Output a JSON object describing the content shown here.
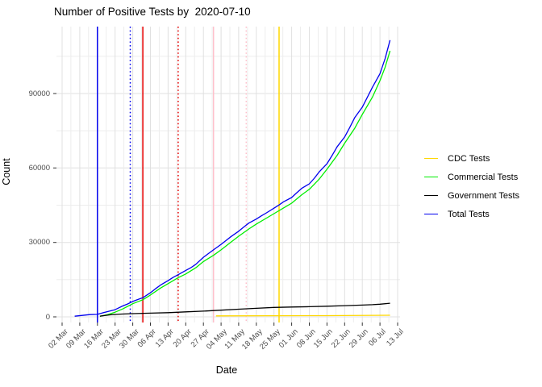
{
  "title": "Number of Positive Tests by  2020-07-10",
  "axes": {
    "x_label": "Date",
    "y_label": "Count"
  },
  "legend": {
    "items": [
      {
        "label": "CDC Tests",
        "color": "#FFD700"
      },
      {
        "label": "Commercial Tests",
        "color": "#00EE00"
      },
      {
        "label": "Government Tests",
        "color": "#000000"
      },
      {
        "label": "Total Tests",
        "color": "#0000EE"
      }
    ]
  },
  "chart_data": {
    "type": "line",
    "title": "Number of Positive Tests by  2020-07-10",
    "xlabel": "Date",
    "ylabel": "Count",
    "x_range": [
      "2020-03-02",
      "2020-07-13"
    ],
    "ylim": [
      0,
      116000
    ],
    "grid": true,
    "legend_position": "right",
    "x_tick_labels": [
      "02 Mar",
      "09 Mar",
      "16 Mar",
      "23 Mar",
      "30 Mar",
      "06 Apr",
      "13 Apr",
      "20 Apr",
      "27 Apr",
      "04 May",
      "11 May",
      "18 May",
      "25 May",
      "01 Jun",
      "08 Jun",
      "15 Jun",
      "22 Jun",
      "29 Jun",
      "06 Jul",
      "13 Jul"
    ],
    "y_ticks": [
      0,
      30000,
      60000,
      90000
    ],
    "y_minor_ticks": [
      15000,
      45000,
      75000,
      105000
    ],
    "x_minor_grid_interval_days": 3.5,
    "series": [
      {
        "name": "Total Tests",
        "color": "#0000EE",
        "points": [
          [
            "2020-03-07",
            250
          ],
          [
            "2020-03-10",
            600
          ],
          [
            "2020-03-13",
            900
          ],
          [
            "2020-03-16",
            1000
          ],
          [
            "2020-03-18",
            1600
          ],
          [
            "2020-03-20",
            2100
          ],
          [
            "2020-03-23",
            2900
          ],
          [
            "2020-03-26",
            4400
          ],
          [
            "2020-03-28",
            5200
          ],
          [
            "2020-03-30",
            6200
          ],
          [
            "2020-04-01",
            7000
          ],
          [
            "2020-04-03",
            7700
          ],
          [
            "2020-04-06",
            9700
          ],
          [
            "2020-04-08",
            11300
          ],
          [
            "2020-04-10",
            12800
          ],
          [
            "2020-04-13",
            14600
          ],
          [
            "2020-04-15",
            15900
          ],
          [
            "2020-04-17",
            17000
          ],
          [
            "2020-04-20",
            18700
          ],
          [
            "2020-04-22",
            19800
          ],
          [
            "2020-04-24",
            21200
          ],
          [
            "2020-04-27",
            24000
          ],
          [
            "2020-04-29",
            25500
          ],
          [
            "2020-05-01",
            27000
          ],
          [
            "2020-05-04",
            29200
          ],
          [
            "2020-05-06",
            30800
          ],
          [
            "2020-05-08",
            32400
          ],
          [
            "2020-05-11",
            34500
          ],
          [
            "2020-05-13",
            36200
          ],
          [
            "2020-05-15",
            37800
          ],
          [
            "2020-05-18",
            39400
          ],
          [
            "2020-05-20",
            40700
          ],
          [
            "2020-05-22",
            41900
          ],
          [
            "2020-05-25",
            43800
          ],
          [
            "2020-05-27",
            45100
          ],
          [
            "2020-05-29",
            46500
          ],
          [
            "2020-06-01",
            48100
          ],
          [
            "2020-06-03",
            50000
          ],
          [
            "2020-06-05",
            51800
          ],
          [
            "2020-06-08",
            53600
          ],
          [
            "2020-06-10",
            55900
          ],
          [
            "2020-06-12",
            58500
          ],
          [
            "2020-06-15",
            61700
          ],
          [
            "2020-06-17",
            65000
          ],
          [
            "2020-06-19",
            68500
          ],
          [
            "2020-06-22",
            72500
          ],
          [
            "2020-06-24",
            76300
          ],
          [
            "2020-06-26",
            80300
          ],
          [
            "2020-06-29",
            84500
          ],
          [
            "2020-07-01",
            88500
          ],
          [
            "2020-07-03",
            92500
          ],
          [
            "2020-07-06",
            98000
          ],
          [
            "2020-07-08",
            104000
          ],
          [
            "2020-07-10",
            111500
          ]
        ]
      },
      {
        "name": "Commercial Tests",
        "color": "#00EE00",
        "points": [
          [
            "2020-03-17",
            200
          ],
          [
            "2020-03-20",
            900
          ],
          [
            "2020-03-23",
            1900
          ],
          [
            "2020-03-26",
            3200
          ],
          [
            "2020-03-30",
            5300
          ],
          [
            "2020-04-03",
            6900
          ],
          [
            "2020-04-06",
            8800
          ],
          [
            "2020-04-10",
            11600
          ],
          [
            "2020-04-13",
            13400
          ],
          [
            "2020-04-17",
            15800
          ],
          [
            "2020-04-20",
            17300
          ],
          [
            "2020-04-24",
            19800
          ],
          [
            "2020-04-27",
            22300
          ],
          [
            "2020-05-01",
            24800
          ],
          [
            "2020-05-04",
            27000
          ],
          [
            "2020-05-08",
            30200
          ],
          [
            "2020-05-11",
            32500
          ],
          [
            "2020-05-15",
            35400
          ],
          [
            "2020-05-18",
            37400
          ],
          [
            "2020-05-22",
            39800
          ],
          [
            "2020-05-25",
            41600
          ],
          [
            "2020-05-29",
            44000
          ],
          [
            "2020-06-01",
            45800
          ],
          [
            "2020-06-05",
            49200
          ],
          [
            "2020-06-08",
            51400
          ],
          [
            "2020-06-12",
            55600
          ],
          [
            "2020-06-15",
            59500
          ],
          [
            "2020-06-19",
            65000
          ],
          [
            "2020-06-22",
            70000
          ],
          [
            "2020-06-26",
            76000
          ],
          [
            "2020-06-29",
            81600
          ],
          [
            "2020-07-03",
            88500
          ],
          [
            "2020-07-06",
            95200
          ],
          [
            "2020-07-08",
            100500
          ],
          [
            "2020-07-10",
            107200
          ]
        ]
      },
      {
        "name": "Government Tests",
        "color": "#000000",
        "points": [
          [
            "2020-03-17",
            300
          ],
          [
            "2020-03-21",
            800
          ],
          [
            "2020-03-25",
            1100
          ],
          [
            "2020-03-30",
            1300
          ],
          [
            "2020-04-06",
            1500
          ],
          [
            "2020-04-13",
            1700
          ],
          [
            "2020-04-20",
            2000
          ],
          [
            "2020-04-27",
            2300
          ],
          [
            "2020-05-04",
            2700
          ],
          [
            "2020-05-11",
            3100
          ],
          [
            "2020-05-18",
            3450
          ],
          [
            "2020-05-25",
            3800
          ],
          [
            "2020-06-01",
            3950
          ],
          [
            "2020-06-08",
            4100
          ],
          [
            "2020-06-15",
            4300
          ],
          [
            "2020-06-22",
            4500
          ],
          [
            "2020-06-29",
            4750
          ],
          [
            "2020-07-03",
            4900
          ],
          [
            "2020-07-06",
            5100
          ],
          [
            "2020-07-10",
            5500
          ]
        ]
      },
      {
        "name": "CDC Tests",
        "color": "#FFD700",
        "points": [
          [
            "2020-05-02",
            400
          ],
          [
            "2020-05-25",
            450
          ],
          [
            "2020-06-15",
            500
          ],
          [
            "2020-07-10",
            650
          ]
        ]
      }
    ],
    "vlines": [
      {
        "date": "2020-03-16",
        "color": "#0000EE",
        "style": "solid"
      },
      {
        "date": "2020-03-29",
        "color": "#0000EE",
        "style": "dotted"
      },
      {
        "date": "2020-04-03",
        "color": "#E60000",
        "style": "solid"
      },
      {
        "date": "2020-04-17",
        "color": "#E60000",
        "style": "dotted"
      },
      {
        "date": "2020-05-01",
        "color": "#FFC0CB",
        "style": "solid"
      },
      {
        "date": "2020-05-14",
        "color": "#FFC0CB",
        "style": "dotted"
      },
      {
        "date": "2020-05-27",
        "color": "#FFD700",
        "style": "solid"
      }
    ]
  }
}
